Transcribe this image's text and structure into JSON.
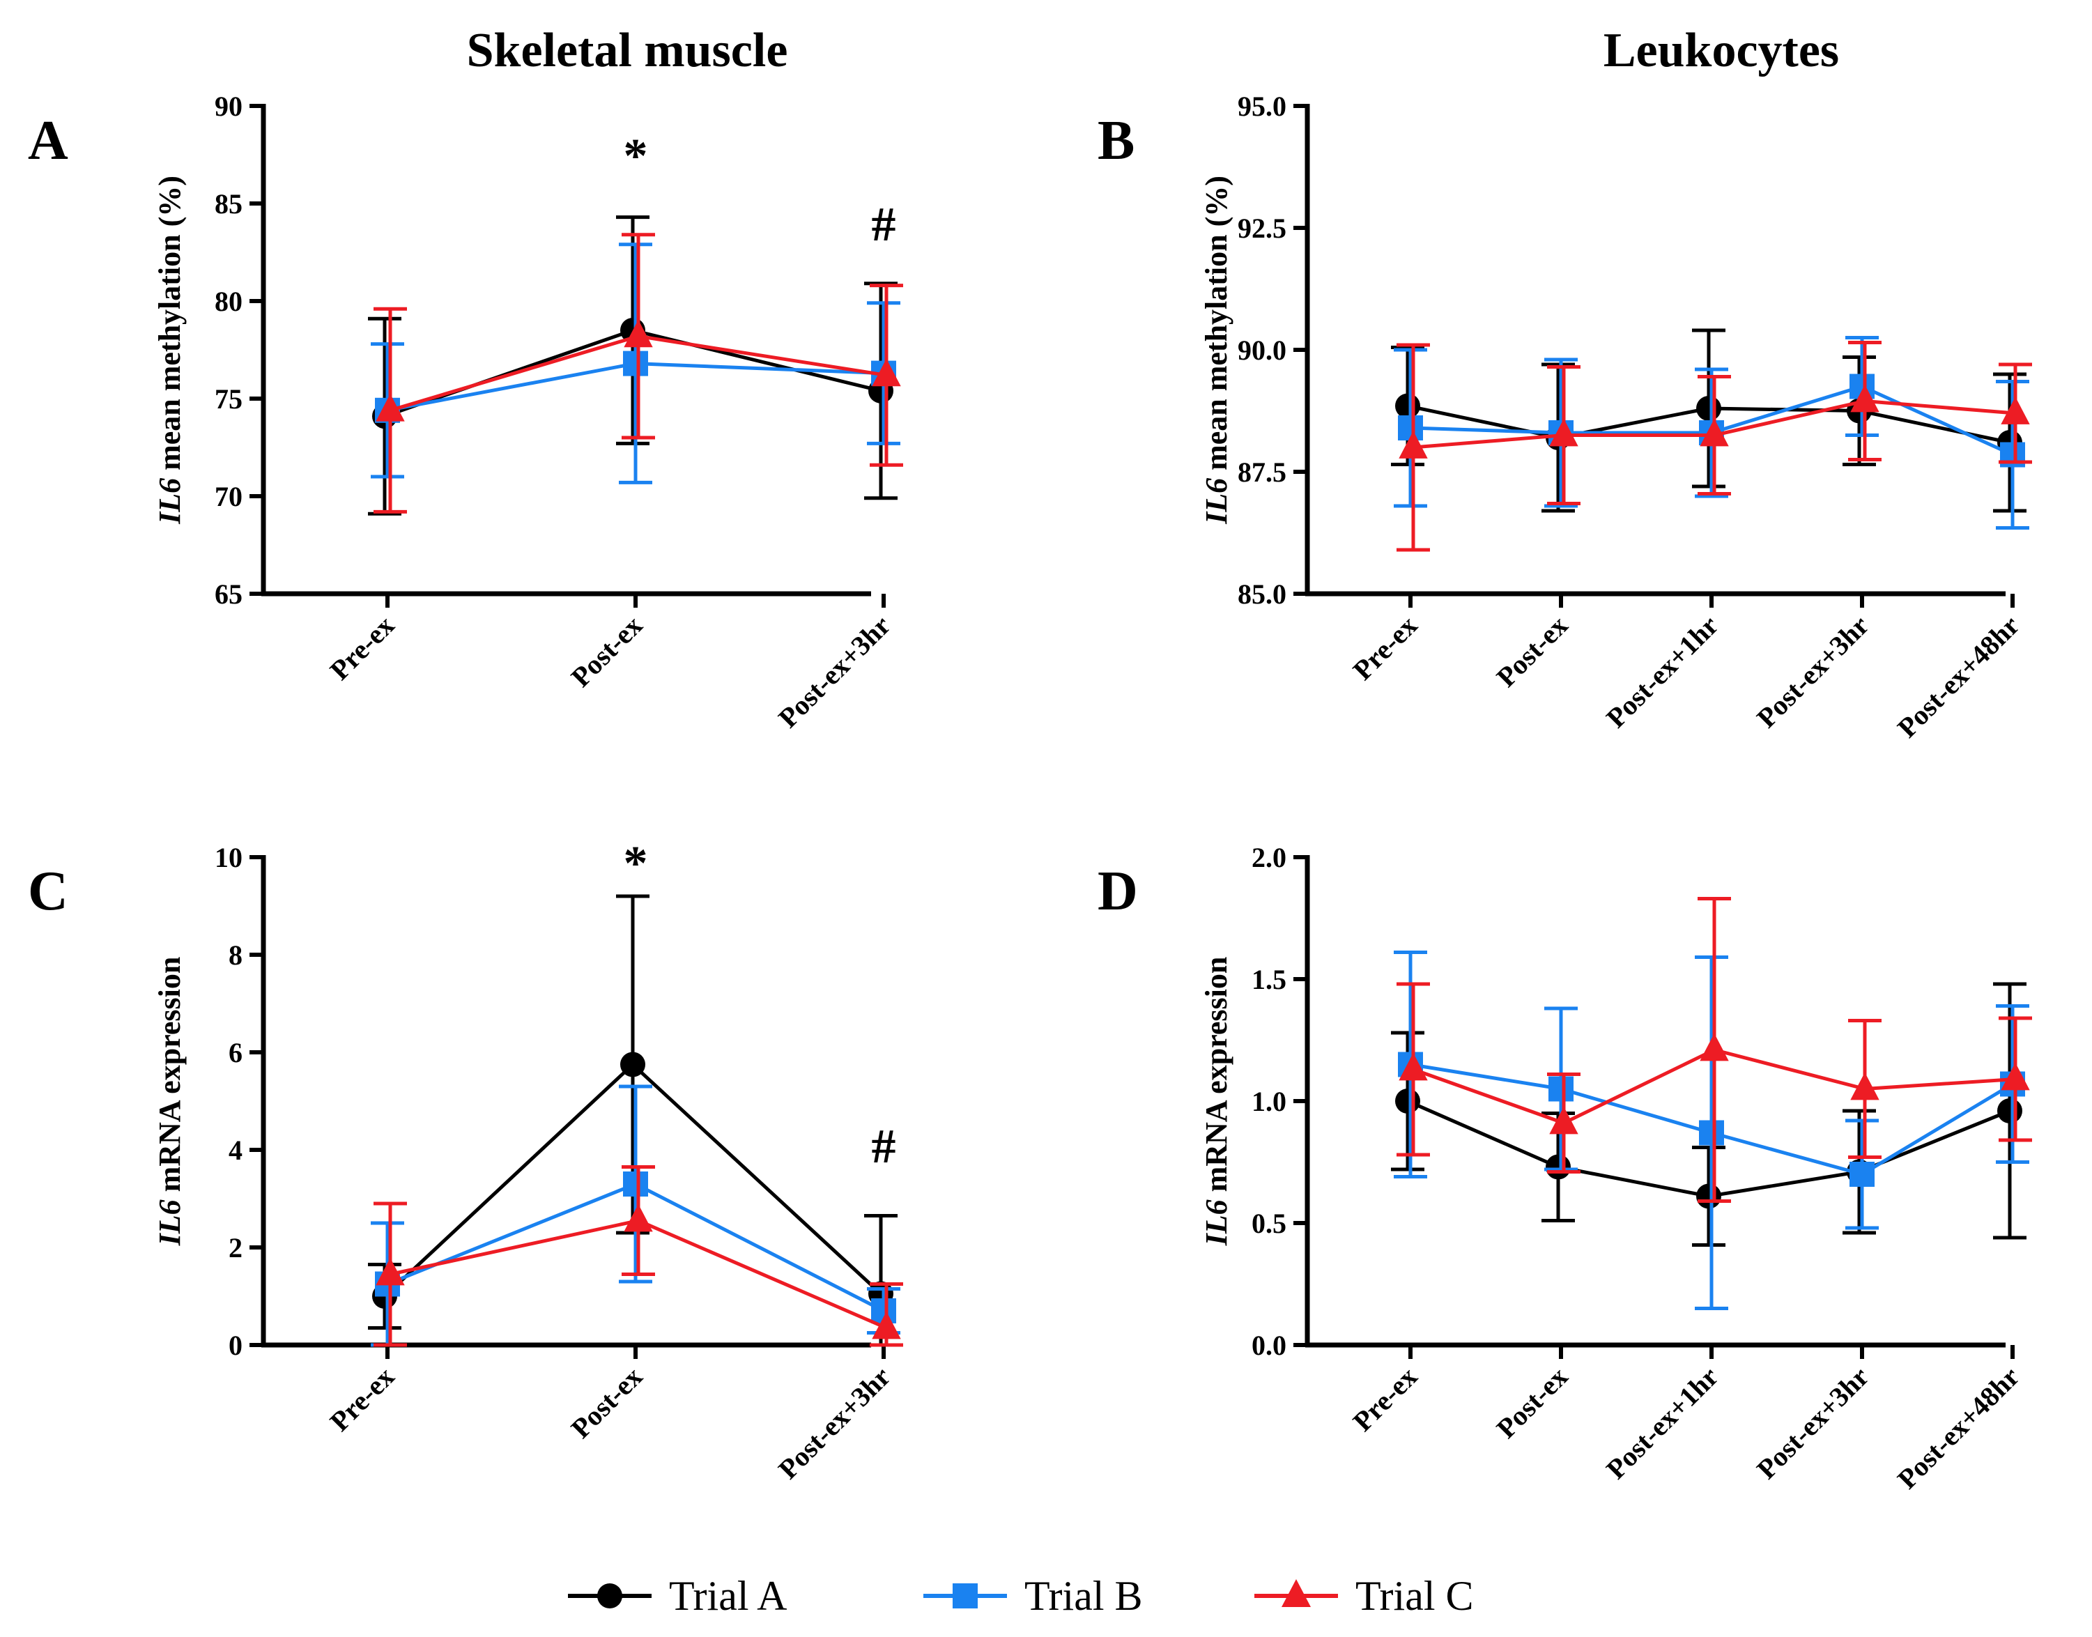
{
  "column_titles": {
    "left": "Skeletal muscle",
    "right": "Leukocytes"
  },
  "colors": {
    "trial_a": "#000000",
    "trial_b": "#1a82f0",
    "trial_c": "#ed1c24"
  },
  "legend": [
    {
      "label": "Trial A",
      "marker": "circle",
      "color": "#000000"
    },
    {
      "label": "Trial B",
      "marker": "square",
      "color": "#1a82f0"
    },
    {
      "label": "Trial C",
      "marker": "triangle",
      "color": "#ed1c24"
    }
  ],
  "chart_data": [
    {
      "panel": "A",
      "type": "line",
      "title": "Skeletal muscle",
      "ylabel_gene": "IL6",
      "ylabel_rest": " mean methylation (%)",
      "ylim": [
        65,
        90
      ],
      "yticks": [
        65,
        70,
        75,
        80,
        85,
        90
      ],
      "ytick_decimals": 0,
      "categories": [
        "Pre-ex",
        "Post-ex",
        "Post-ex+3hr"
      ],
      "series": [
        {
          "name": "Trial A",
          "marker": "circle",
          "values": [
            74.1,
            78.5,
            75.4
          ],
          "err": [
            5.0,
            5.8,
            5.5
          ]
        },
        {
          "name": "Trial B",
          "marker": "square",
          "values": [
            74.4,
            76.8,
            76.3
          ],
          "err": [
            3.4,
            6.1,
            3.6
          ]
        },
        {
          "name": "Trial C",
          "marker": "triangle",
          "values": [
            74.4,
            78.2,
            76.2
          ],
          "err": [
            5.2,
            5.2,
            4.6
          ]
        }
      ],
      "annotations": [
        {
          "category": "Post-ex",
          "text": "*",
          "y": 87.5
        },
        {
          "category": "Post-ex+3hr",
          "text": "#",
          "y": 84.0
        }
      ]
    },
    {
      "panel": "B",
      "type": "line",
      "title": "Leukocytes",
      "ylabel_gene": "IL6",
      "ylabel_rest": " mean methylation (%)",
      "ylim": [
        85,
        95
      ],
      "yticks": [
        85.0,
        87.5,
        90.0,
        92.5,
        95.0
      ],
      "ytick_decimals": 1,
      "categories": [
        "Pre-ex",
        "Post-ex",
        "Post-ex+1hr",
        "Post-ex+3hr",
        "Post-ex+48hr"
      ],
      "series": [
        {
          "name": "Trial A",
          "marker": "circle",
          "values": [
            88.85,
            88.2,
            88.8,
            88.75,
            88.1
          ],
          "err": [
            1.2,
            1.5,
            1.6,
            1.1,
            1.4
          ]
        },
        {
          "name": "Trial B",
          "marker": "square",
          "values": [
            88.4,
            88.3,
            88.3,
            89.25,
            87.85
          ],
          "err": [
            1.6,
            1.5,
            1.3,
            1.0,
            1.5
          ]
        },
        {
          "name": "Trial C",
          "marker": "triangle",
          "values": [
            88.0,
            88.25,
            88.25,
            88.95,
            88.7
          ],
          "err": [
            2.1,
            1.4,
            1.2,
            1.2,
            1.0
          ]
        }
      ],
      "annotations": []
    },
    {
      "panel": "C",
      "type": "line",
      "title": "",
      "ylabel_gene": "IL6",
      "ylabel_rest": " mRNA expression",
      "ylim": [
        0,
        10
      ],
      "yticks": [
        0,
        2,
        4,
        6,
        8,
        10
      ],
      "ytick_decimals": 0,
      "categories": [
        "Pre-ex",
        "Post-ex",
        "Post-ex+3hr"
      ],
      "series": [
        {
          "name": "Trial A",
          "marker": "circle",
          "values": [
            1.0,
            5.75,
            1.05
          ],
          "err": [
            0.65,
            3.45,
            1.6
          ]
        },
        {
          "name": "Trial B",
          "marker": "square",
          "values": [
            1.25,
            3.3,
            0.7
          ],
          "err": [
            1.25,
            2.0,
            0.45
          ]
        },
        {
          "name": "Trial C",
          "marker": "triangle",
          "values": [
            1.45,
            2.55,
            0.35
          ],
          "err": [
            1.45,
            1.1,
            0.9
          ]
        }
      ],
      "annotations": [
        {
          "category": "Post-ex",
          "text": "*",
          "y": 9.9
        },
        {
          "category": "Post-ex+3hr",
          "text": "#",
          "y": 4.1
        }
      ]
    },
    {
      "panel": "D",
      "type": "line",
      "title": "",
      "ylabel_gene": "IL6",
      "ylabel_rest": " mRNA expression",
      "ylim": [
        0,
        2
      ],
      "yticks": [
        0.0,
        0.5,
        1.0,
        1.5,
        2.0
      ],
      "ytick_decimals": 1,
      "categories": [
        "Pre-ex",
        "Post-ex",
        "Post-ex+1hr",
        "Post-ex+3hr",
        "Post-ex+48hr"
      ],
      "series": [
        {
          "name": "Trial A",
          "marker": "circle",
          "values": [
            1.0,
            0.73,
            0.61,
            0.71,
            0.96
          ],
          "err": [
            0.28,
            0.22,
            0.2,
            0.25,
            0.52
          ]
        },
        {
          "name": "Trial B",
          "marker": "square",
          "values": [
            1.15,
            1.05,
            0.87,
            0.7,
            1.07
          ],
          "err": [
            0.46,
            0.33,
            0.72,
            0.22,
            0.32
          ]
        },
        {
          "name": "Trial C",
          "marker": "triangle",
          "values": [
            1.13,
            0.91,
            1.21,
            1.05,
            1.09
          ],
          "err": [
            0.35,
            0.2,
            0.62,
            0.28,
            0.25
          ]
        }
      ],
      "annotations": []
    }
  ]
}
